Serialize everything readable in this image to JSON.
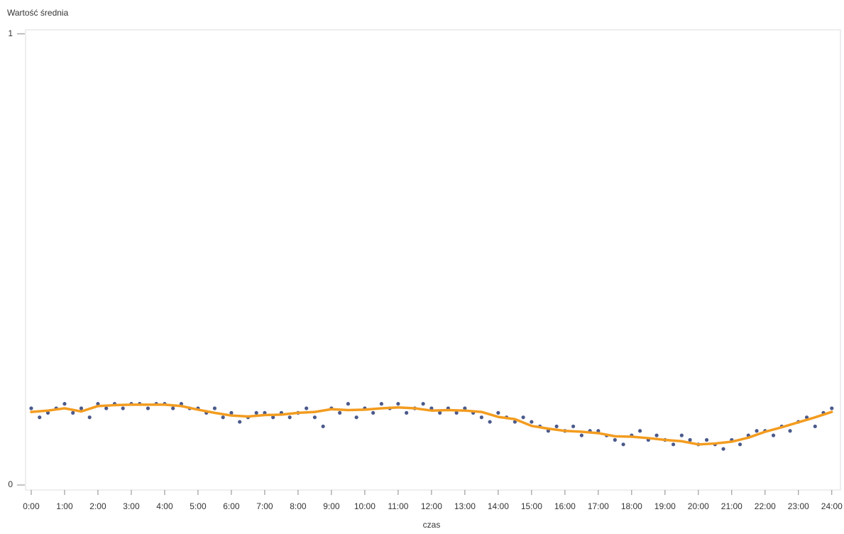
{
  "chart_data": {
    "type": "scatter",
    "ylabel": "Wartość średnia",
    "xlabel": "czas",
    "xlim": [
      -0.17,
      24.26
    ],
    "ylim": [
      -0.011,
      1.009
    ],
    "yticks": [
      0,
      1
    ],
    "xticks": [
      {
        "value": 0,
        "label": "0:00"
      },
      {
        "value": 1,
        "label": "1:00"
      },
      {
        "value": 2,
        "label": "2:00"
      },
      {
        "value": 3,
        "label": "3:00"
      },
      {
        "value": 4,
        "label": "4:00"
      },
      {
        "value": 5,
        "label": "5:00"
      },
      {
        "value": 6,
        "label": "6:00"
      },
      {
        "value": 7,
        "label": "7:00"
      },
      {
        "value": 8,
        "label": "8:00"
      },
      {
        "value": 9,
        "label": "9:00"
      },
      {
        "value": 10,
        "label": "10:00"
      },
      {
        "value": 11,
        "label": "11:00"
      },
      {
        "value": 12,
        "label": "12:00"
      },
      {
        "value": 13,
        "label": "13:00"
      },
      {
        "value": 14,
        "label": "14:00"
      },
      {
        "value": 15,
        "label": "15:00"
      },
      {
        "value": 16,
        "label": "16:00"
      },
      {
        "value": 17,
        "label": "17:00"
      },
      {
        "value": 18,
        "label": "18:00"
      },
      {
        "value": 19,
        "label": "19:00"
      },
      {
        "value": 20,
        "label": "20:00"
      },
      {
        "value": 21,
        "label": "21:00"
      },
      {
        "value": 22,
        "label": "22:00"
      },
      {
        "value": 23,
        "label": "23:00"
      },
      {
        "value": 24,
        "label": "24:00"
      }
    ],
    "grid": false,
    "series": [
      {
        "type": "scatter",
        "color": "#4b5a8c",
        "x": [
          0,
          0.25,
          0.5,
          0.75,
          1,
          1.25,
          1.5,
          1.75,
          2,
          2.25,
          2.5,
          2.75,
          3,
          3.25,
          3.5,
          3.75,
          4,
          4.25,
          4.5,
          4.75,
          5,
          5.25,
          5.5,
          5.75,
          6,
          6.25,
          6.5,
          6.75,
          7,
          7.25,
          7.5,
          7.75,
          8,
          8.25,
          8.5,
          8.75,
          9,
          9.25,
          9.5,
          9.75,
          10,
          10.25,
          10.5,
          10.75,
          11,
          11.25,
          11.5,
          11.75,
          12,
          12.25,
          12.5,
          12.75,
          13,
          13.25,
          13.5,
          13.75,
          14,
          14.25,
          14.5,
          14.75,
          15,
          15.25,
          15.5,
          15.75,
          16,
          16.25,
          16.5,
          16.75,
          17,
          17.25,
          17.5,
          17.75,
          18,
          18.25,
          18.5,
          18.75,
          19,
          19.25,
          19.5,
          19.75,
          20,
          20.25,
          20.5,
          20.75,
          21,
          21.25,
          21.5,
          21.75,
          22,
          22.25,
          22.5,
          22.75,
          23,
          23.25,
          23.5,
          23.75,
          24
        ],
        "values": [
          0.17,
          0.15,
          0.16,
          0.17,
          0.18,
          0.16,
          0.17,
          0.15,
          0.18,
          0.17,
          0.18,
          0.17,
          0.18,
          0.18,
          0.17,
          0.18,
          0.18,
          0.17,
          0.18,
          0.17,
          0.17,
          0.16,
          0.17,
          0.15,
          0.16,
          0.14,
          0.15,
          0.16,
          0.16,
          0.15,
          0.16,
          0.15,
          0.16,
          0.17,
          0.15,
          0.13,
          0.17,
          0.16,
          0.18,
          0.15,
          0.17,
          0.16,
          0.18,
          0.17,
          0.18,
          0.16,
          0.17,
          0.18,
          0.17,
          0.16,
          0.17,
          0.16,
          0.17,
          0.16,
          0.15,
          0.14,
          0.16,
          0.15,
          0.14,
          0.15,
          0.14,
          0.13,
          0.12,
          0.13,
          0.12,
          0.13,
          0.11,
          0.12,
          0.12,
          0.11,
          0.1,
          0.09,
          0.11,
          0.12,
          0.1,
          0.11,
          0.1,
          0.09,
          0.11,
          0.1,
          0.09,
          0.1,
          0.09,
          0.08,
          0.1,
          0.09,
          0.11,
          0.12,
          0.12,
          0.11,
          0.13,
          0.12,
          0.14,
          0.15,
          0.13,
          0.16,
          0.17
        ]
      },
      {
        "type": "line",
        "color": "#f39c1f",
        "x": [
          0,
          0.5,
          1,
          1.5,
          2,
          2.5,
          3,
          3.5,
          4,
          4.5,
          5,
          5.5,
          6,
          6.5,
          7,
          7.5,
          8,
          8.5,
          9,
          9.5,
          10,
          10.5,
          11,
          11.5,
          12,
          12.5,
          13,
          13.5,
          14,
          14.5,
          15,
          15.5,
          16,
          16.5,
          17,
          17.5,
          18,
          18.5,
          19,
          19.5,
          20,
          20.5,
          21,
          21.5,
          22,
          22.5,
          23,
          23.5,
          24
        ],
        "values": [
          0.162,
          0.165,
          0.17,
          0.163,
          0.175,
          0.177,
          0.178,
          0.178,
          0.178,
          0.175,
          0.167,
          0.16,
          0.154,
          0.152,
          0.155,
          0.156,
          0.16,
          0.162,
          0.168,
          0.166,
          0.167,
          0.17,
          0.172,
          0.17,
          0.165,
          0.166,
          0.165,
          0.162,
          0.151,
          0.146,
          0.131,
          0.125,
          0.12,
          0.118,
          0.115,
          0.108,
          0.107,
          0.104,
          0.1,
          0.097,
          0.09,
          0.092,
          0.096,
          0.105,
          0.118,
          0.128,
          0.139,
          0.15,
          0.162
        ]
      }
    ]
  }
}
